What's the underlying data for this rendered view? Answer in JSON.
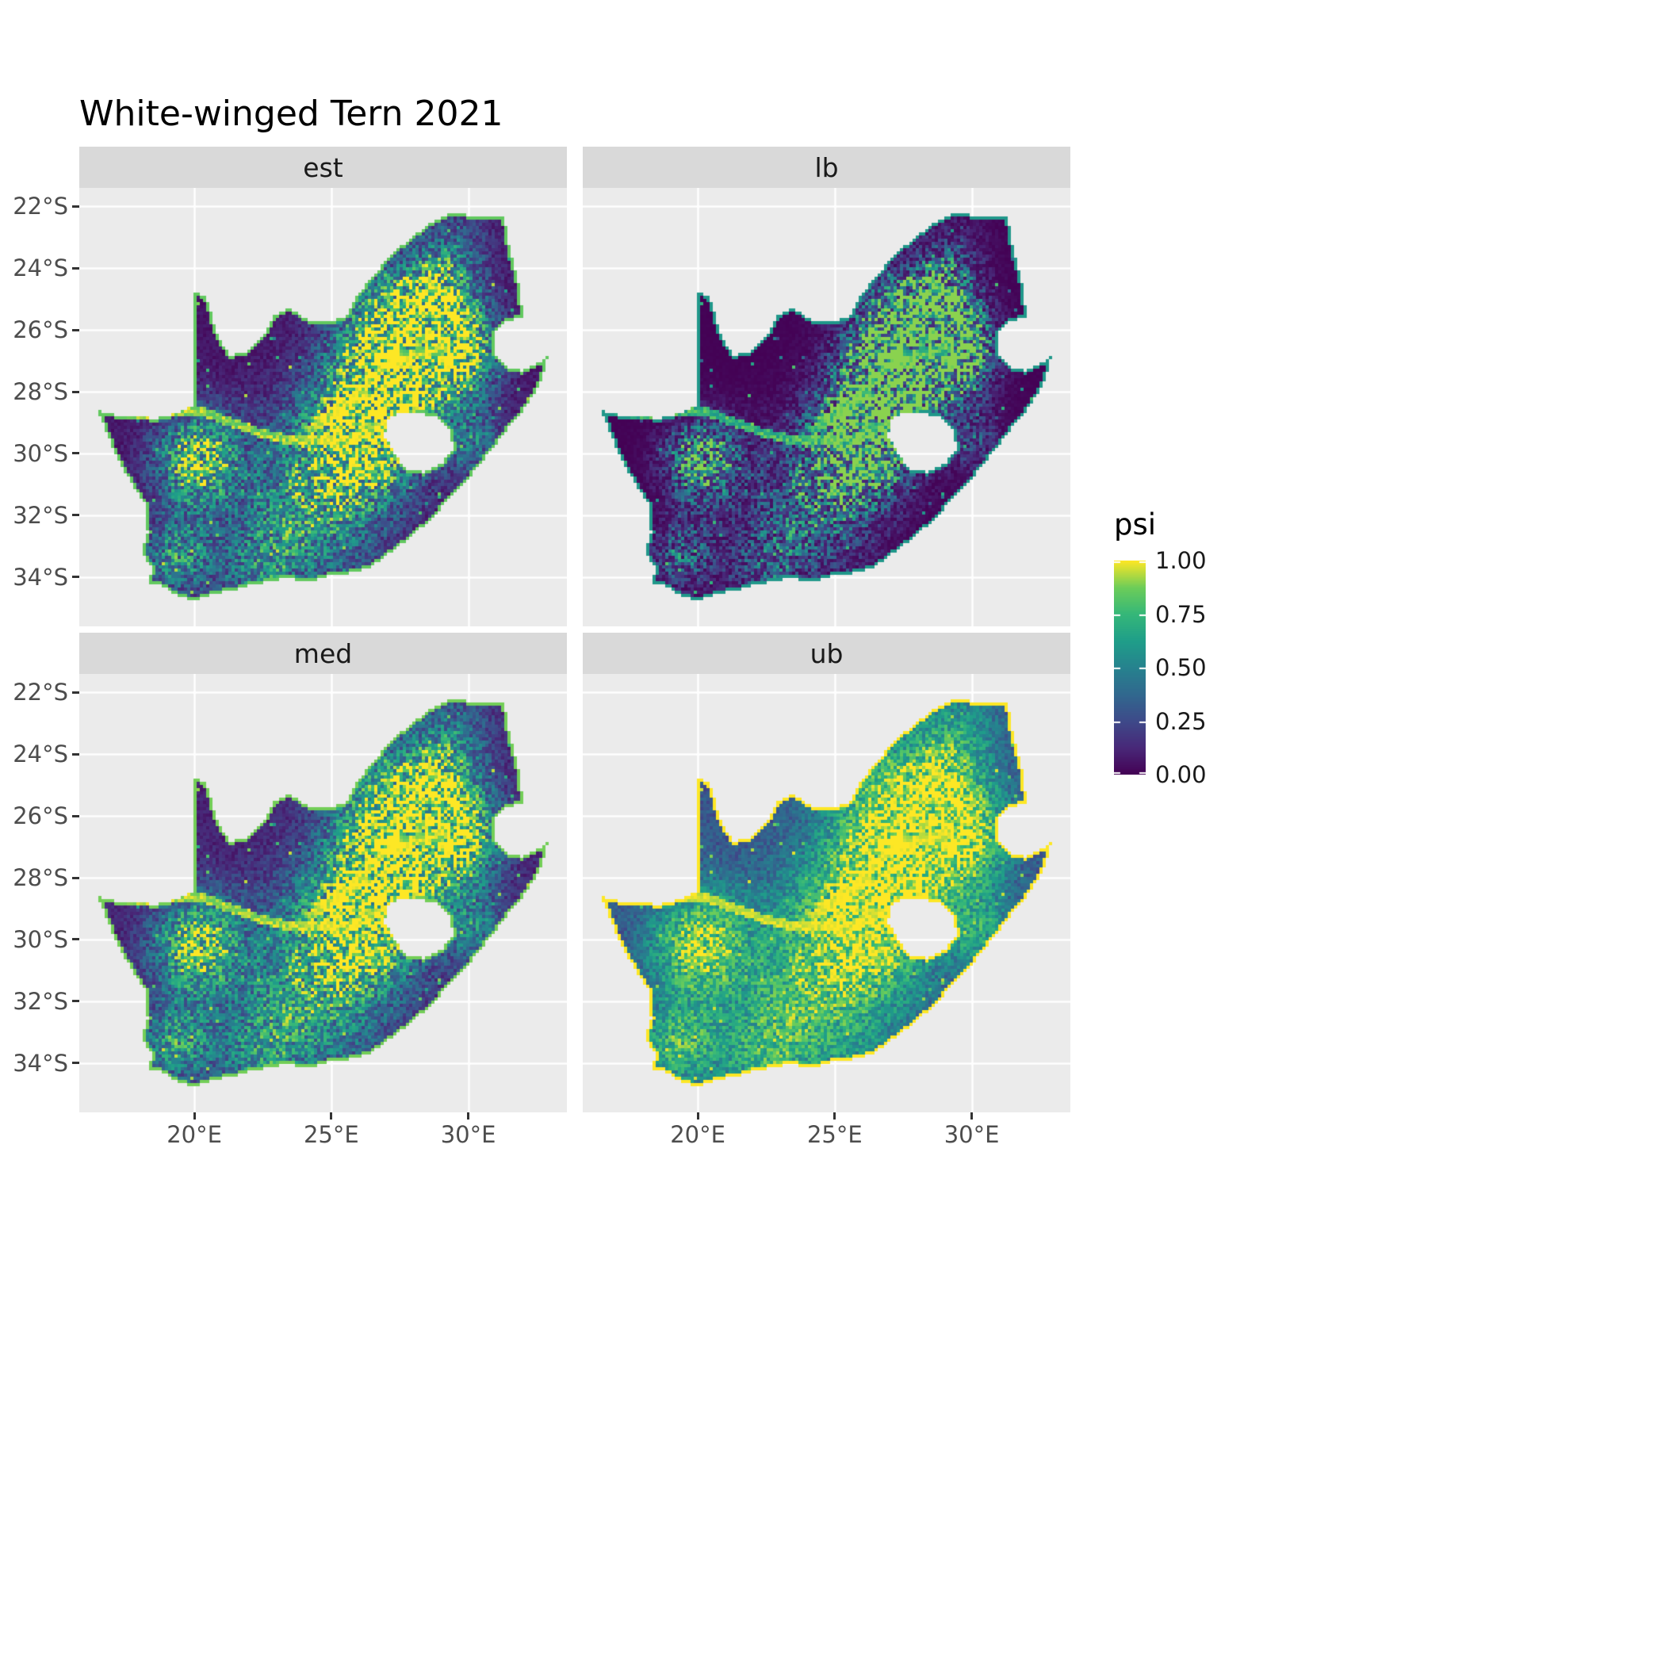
{
  "colors": {
    "background": "#FFFFFF",
    "panel_bg": "#EBEBEB",
    "gridline": "#FFFFFF",
    "strip_bg": "#D9D9D9",
    "strip_text": "#1A1A1A",
    "axis_text": "#4D4D4D",
    "tick_mark": "#333333",
    "title_text": "#000000"
  },
  "chart_data": {
    "type": "heatmap",
    "title": "White-winged Tern 2021",
    "region": "South Africa",
    "variable": "psi",
    "facets": [
      "est",
      "lb",
      "med",
      "ub"
    ],
    "value_range": [
      0,
      1
    ],
    "legend": {
      "title": "psi",
      "position": "right",
      "tick_labels": [
        "1.00",
        "0.75",
        "0.50",
        "0.25",
        "0.00"
      ],
      "tick_values": [
        1,
        0.75,
        0.5,
        0.25,
        0
      ]
    },
    "x_axis": {
      "range": [
        15.8,
        33.6
      ],
      "ticks": [
        {
          "label": "20°E",
          "value": 20
        },
        {
          "label": "25°E",
          "value": 25
        },
        {
          "label": "30°E",
          "value": 30
        }
      ]
    },
    "y_axis": {
      "range": [
        -35.6,
        -21.4
      ],
      "ticks": [
        {
          "label": "22°S",
          "value": -22
        },
        {
          "label": "24°S",
          "value": -24
        },
        {
          "label": "26°S",
          "value": -26
        },
        {
          "label": "28°S",
          "value": -28
        },
        {
          "label": "30°S",
          "value": -30
        },
        {
          "label": "32°S",
          "value": -32
        },
        {
          "label": "34°S",
          "value": -34
        }
      ]
    },
    "colormap": {
      "name": "viridis",
      "stops": [
        [
          0.0,
          "#440154"
        ],
        [
          0.125,
          "#482878"
        ],
        [
          0.25,
          "#3E4A89"
        ],
        [
          0.375,
          "#31688E"
        ],
        [
          0.5,
          "#26828E"
        ],
        [
          0.625,
          "#1F9E89"
        ],
        [
          0.75,
          "#35B779"
        ],
        [
          0.875,
          "#6DCD59"
        ],
        [
          1.0,
          "#FDE725"
        ]
      ]
    },
    "facet_transforms": {
      "est": {
        "exp": 1.0,
        "mult": 1.0,
        "edge": 0.85
      },
      "lb": {
        "exp": 1.9,
        "mult": 0.9,
        "edge": 0.6
      },
      "med": {
        "exp": 0.8,
        "mult": 1.0,
        "edge": 0.88
      },
      "ub": {
        "exp": 0.42,
        "mult": 1.0,
        "edge": 1.0
      }
    },
    "map": {
      "base_level": 0.06,
      "outline": [
        [
          16.45,
          -28.6
        ],
        [
          17.05,
          -28.75
        ],
        [
          17.75,
          -28.77
        ],
        [
          18.55,
          -28.87
        ],
        [
          19.3,
          -28.72
        ],
        [
          19.98,
          -28.42
        ],
        [
          20.0,
          -28.3
        ],
        [
          20.0,
          -24.75
        ],
        [
          20.45,
          -24.95
        ],
        [
          20.65,
          -25.6
        ],
        [
          20.85,
          -26.2
        ],
        [
          21.3,
          -26.85
        ],
        [
          21.9,
          -26.7
        ],
        [
          22.55,
          -26.15
        ],
        [
          22.9,
          -25.55
        ],
        [
          23.5,
          -25.3
        ],
        [
          24.2,
          -25.7
        ],
        [
          25.0,
          -25.7
        ],
        [
          25.6,
          -25.55
        ],
        [
          25.9,
          -24.9
        ],
        [
          26.45,
          -24.35
        ],
        [
          27.15,
          -23.6
        ],
        [
          27.95,
          -23.0
        ],
        [
          28.6,
          -22.55
        ],
        [
          29.35,
          -22.2
        ],
        [
          30.15,
          -22.3
        ],
        [
          31.3,
          -22.35
        ],
        [
          31.55,
          -23.5
        ],
        [
          31.9,
          -24.7
        ],
        [
          32.0,
          -25.6
        ],
        [
          31.45,
          -25.7
        ],
        [
          31.0,
          -26.05
        ],
        [
          30.95,
          -26.75
        ],
        [
          31.45,
          -27.25
        ],
        [
          31.95,
          -27.32
        ],
        [
          32.45,
          -27.15
        ],
        [
          32.89,
          -26.85
        ],
        [
          32.65,
          -27.7
        ],
        [
          32.1,
          -28.5
        ],
        [
          31.3,
          -29.35
        ],
        [
          30.4,
          -30.4
        ],
        [
          29.5,
          -31.3
        ],
        [
          28.5,
          -32.25
        ],
        [
          27.4,
          -33.05
        ],
        [
          26.4,
          -33.7
        ],
        [
          25.6,
          -33.9
        ],
        [
          25.0,
          -33.95
        ],
        [
          24.2,
          -34.15
        ],
        [
          23.3,
          -34.05
        ],
        [
          22.4,
          -34.2
        ],
        [
          21.5,
          -34.4
        ],
        [
          20.5,
          -34.6
        ],
        [
          20.0,
          -34.8
        ],
        [
          19.3,
          -34.55
        ],
        [
          18.8,
          -34.3
        ],
        [
          18.35,
          -34.2
        ],
        [
          18.45,
          -33.7
        ],
        [
          18.05,
          -33.15
        ],
        [
          18.3,
          -32.55
        ],
        [
          18.2,
          -31.65
        ],
        [
          17.6,
          -30.8
        ],
        [
          17.1,
          -30.0
        ],
        [
          16.8,
          -29.3
        ]
      ],
      "lesotho_hole": [
        [
          27.05,
          -28.9
        ],
        [
          27.55,
          -28.65
        ],
        [
          28.25,
          -28.7
        ],
        [
          28.95,
          -28.85
        ],
        [
          29.35,
          -29.3
        ],
        [
          29.45,
          -29.9
        ],
        [
          29.05,
          -30.3
        ],
        [
          28.35,
          -30.6
        ],
        [
          27.7,
          -30.5
        ],
        [
          27.3,
          -30.0
        ],
        [
          26.95,
          -29.45
        ]
      ],
      "rivers": [
        [
          [
            17.0,
            -28.62
          ],
          [
            18.2,
            -28.78
          ],
          [
            19.2,
            -28.6
          ],
          [
            20.2,
            -28.6
          ],
          [
            21.2,
            -28.95
          ],
          [
            22.3,
            -29.3
          ],
          [
            23.4,
            -29.55
          ],
          [
            24.4,
            -29.55
          ],
          [
            25.4,
            -29.65
          ],
          [
            26.4,
            -29.2
          ],
          [
            27.0,
            -29.05
          ]
        ],
        [
          [
            24.3,
            -29.2
          ],
          [
            25.0,
            -28.7
          ],
          [
            25.8,
            -28.3
          ],
          [
            26.3,
            -27.8
          ],
          [
            26.8,
            -27.3
          ],
          [
            27.6,
            -26.9
          ],
          [
            28.4,
            -26.8
          ],
          [
            29.1,
            -26.6
          ]
        ]
      ],
      "hotspots": [
        [
          27.4,
          -26.4,
          1.5,
          0.95
        ],
        [
          26.3,
          -29.2,
          1.4,
          0.85
        ],
        [
          29.4,
          -26.6,
          1.1,
          0.85
        ],
        [
          20.1,
          -30.2,
          1.1,
          0.75
        ],
        [
          24.5,
          -31.4,
          1.9,
          0.55
        ],
        [
          19.4,
          -33.3,
          0.9,
          0.5
        ],
        [
          22.5,
          -33.8,
          1.2,
          0.35
        ],
        [
          28.8,
          -24.8,
          1.0,
          0.4
        ],
        [
          29.5,
          -23.3,
          0.9,
          0.25
        ],
        [
          30.2,
          -29.6,
          0.8,
          0.35
        ]
      ]
    }
  }
}
